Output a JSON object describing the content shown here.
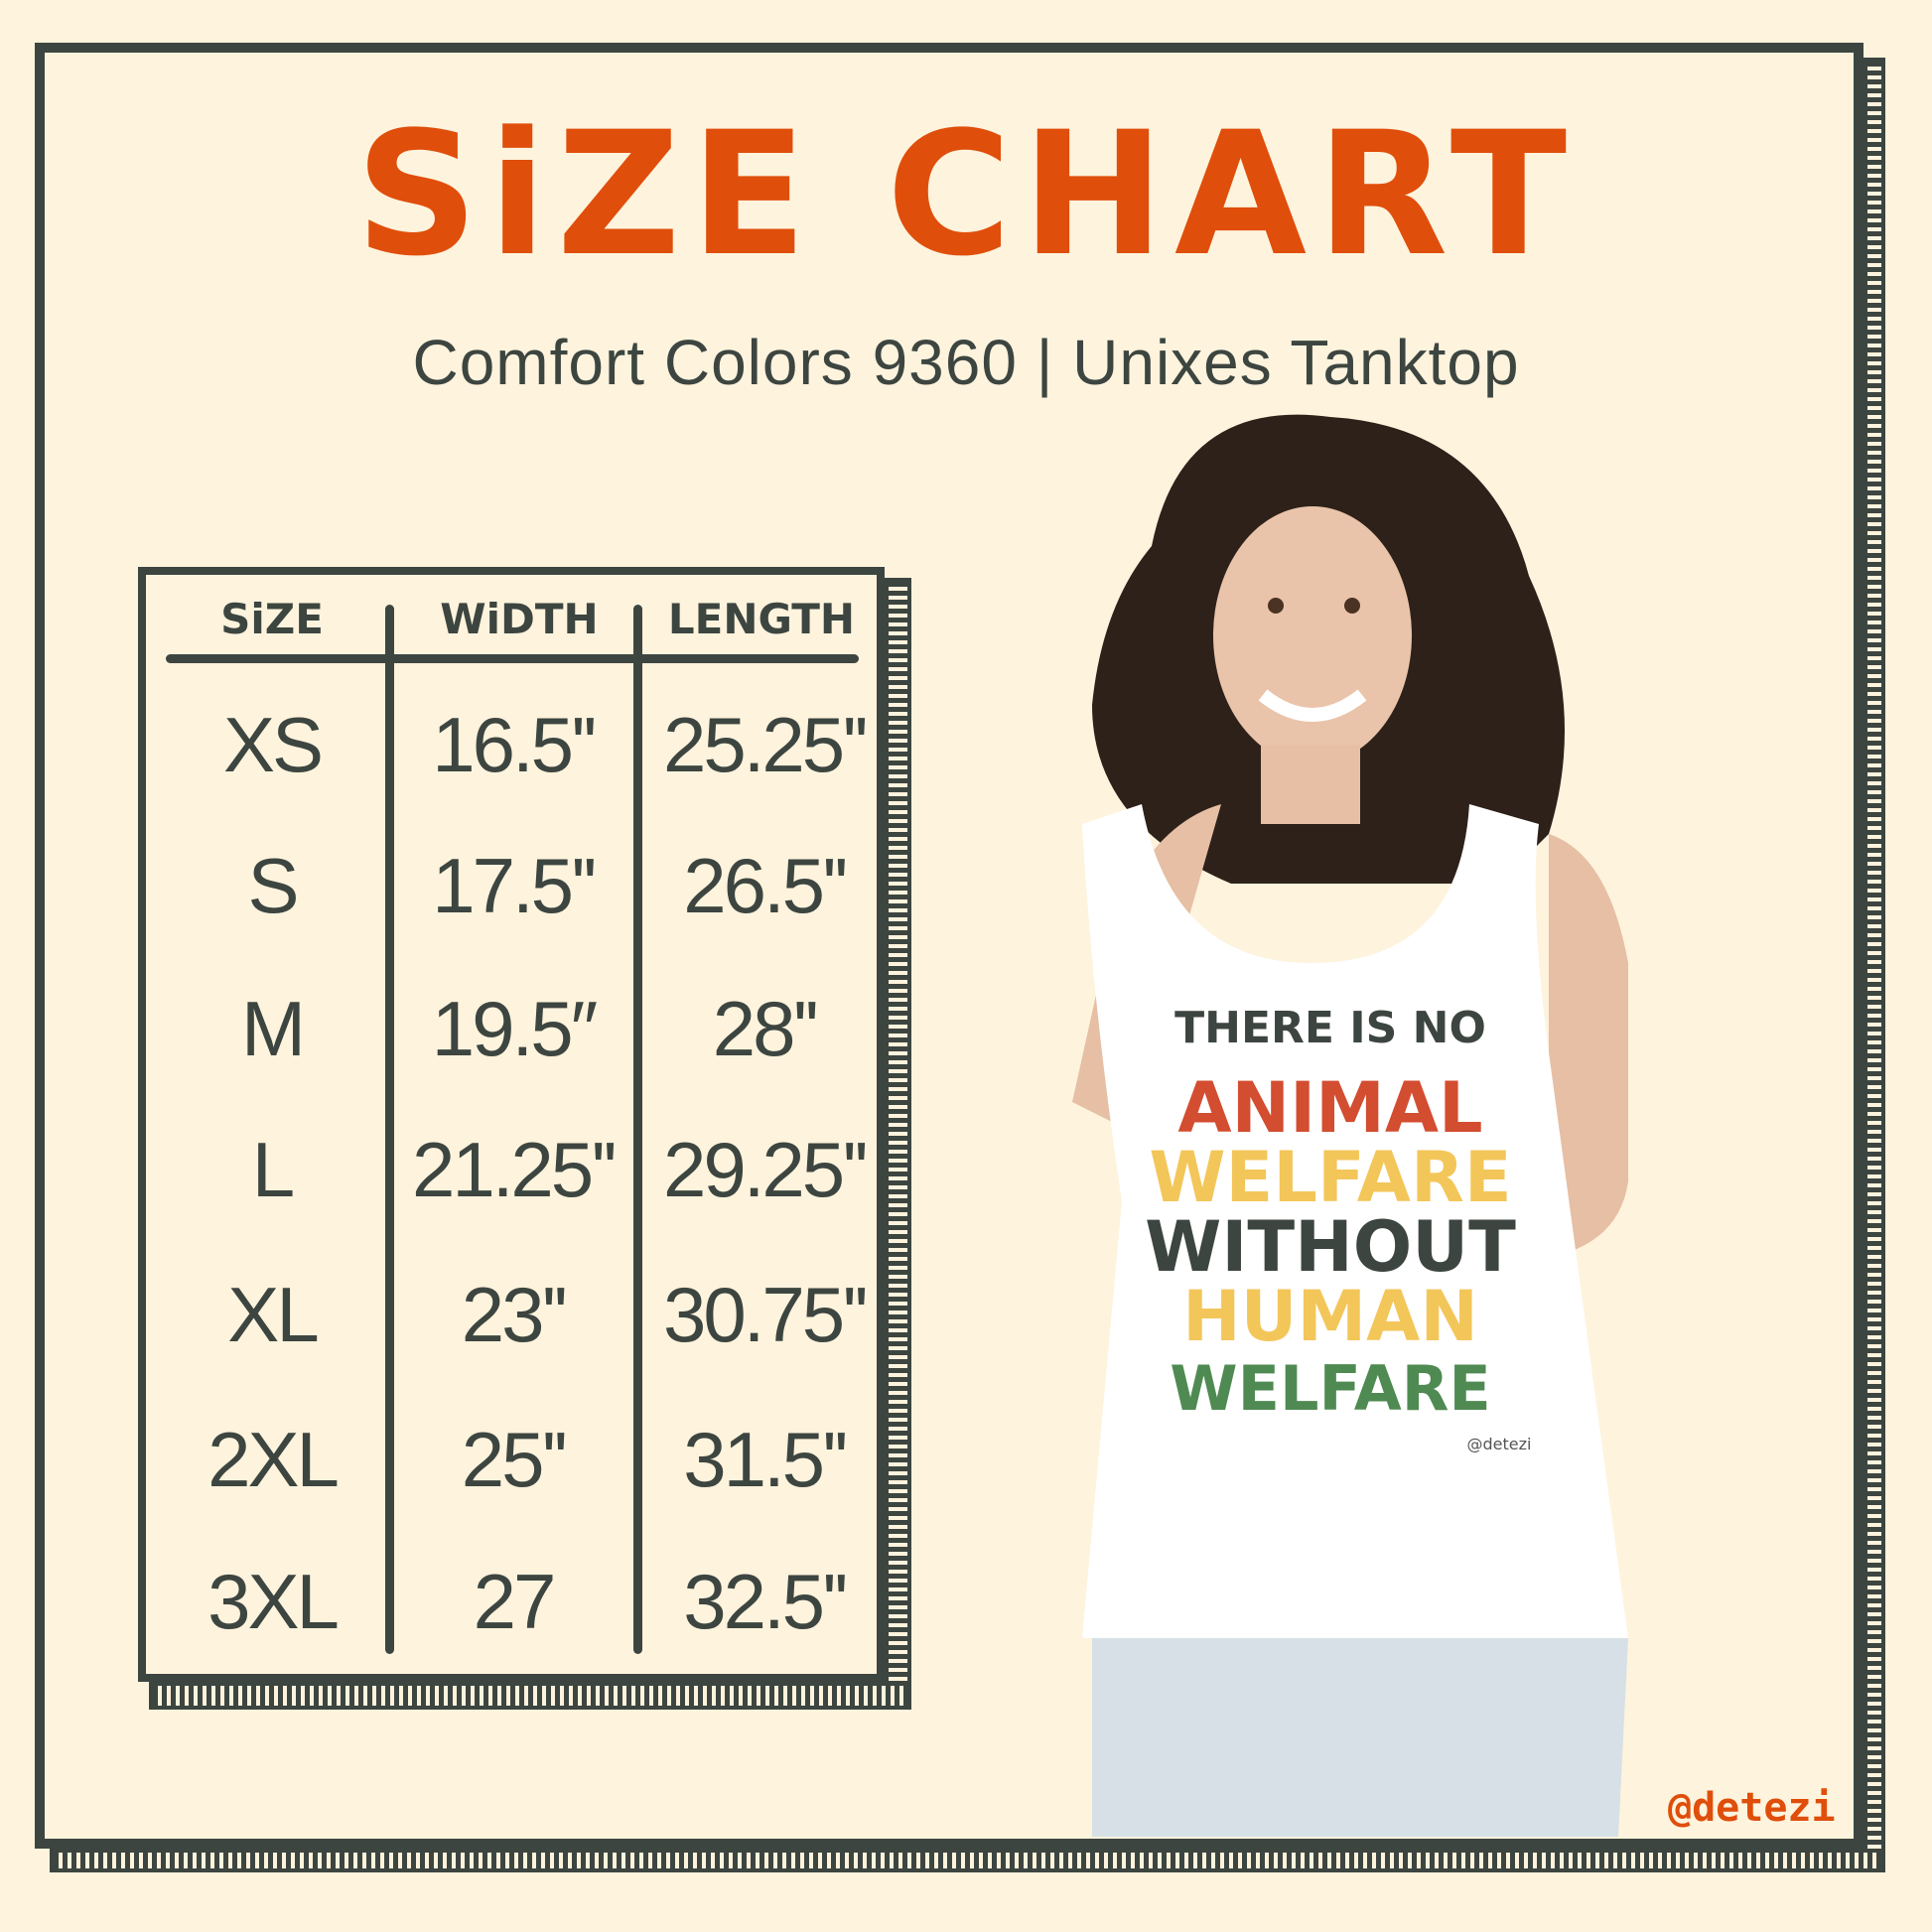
{
  "title": "SiZE CHART",
  "subtitle": "Comfort Colors 9360 | Unixes Tanktop",
  "table": {
    "headers": [
      "SiZE",
      "WiDTH",
      "LENGTH"
    ],
    "rows": [
      [
        "XS",
        "16.5''",
        "25.25''"
      ],
      [
        "S",
        "17.5''",
        "26.5''"
      ],
      [
        "M",
        "19.5″",
        "28''"
      ],
      [
        "L",
        "21.25''",
        "29.25''"
      ],
      [
        "XL",
        "23''",
        "30.75''"
      ],
      [
        "2XL",
        "25''",
        "31.5''"
      ],
      [
        "3XL",
        "27",
        "32.5''"
      ]
    ]
  },
  "shirt_print": {
    "lines": [
      "THERE IS NO",
      "ANIMAL",
      "WELFARE",
      "WITHOUT",
      "HUMAN",
      "WELFARE"
    ],
    "signature": "@detezi"
  },
  "watermark": "@detezi",
  "colors": {
    "background": "#fef3dd",
    "ink": "#3d4540",
    "accent": "#e04e0b",
    "print_red": "#d34d30",
    "print_green": "#4f8a52",
    "print_yellow": "#f3c65a"
  }
}
